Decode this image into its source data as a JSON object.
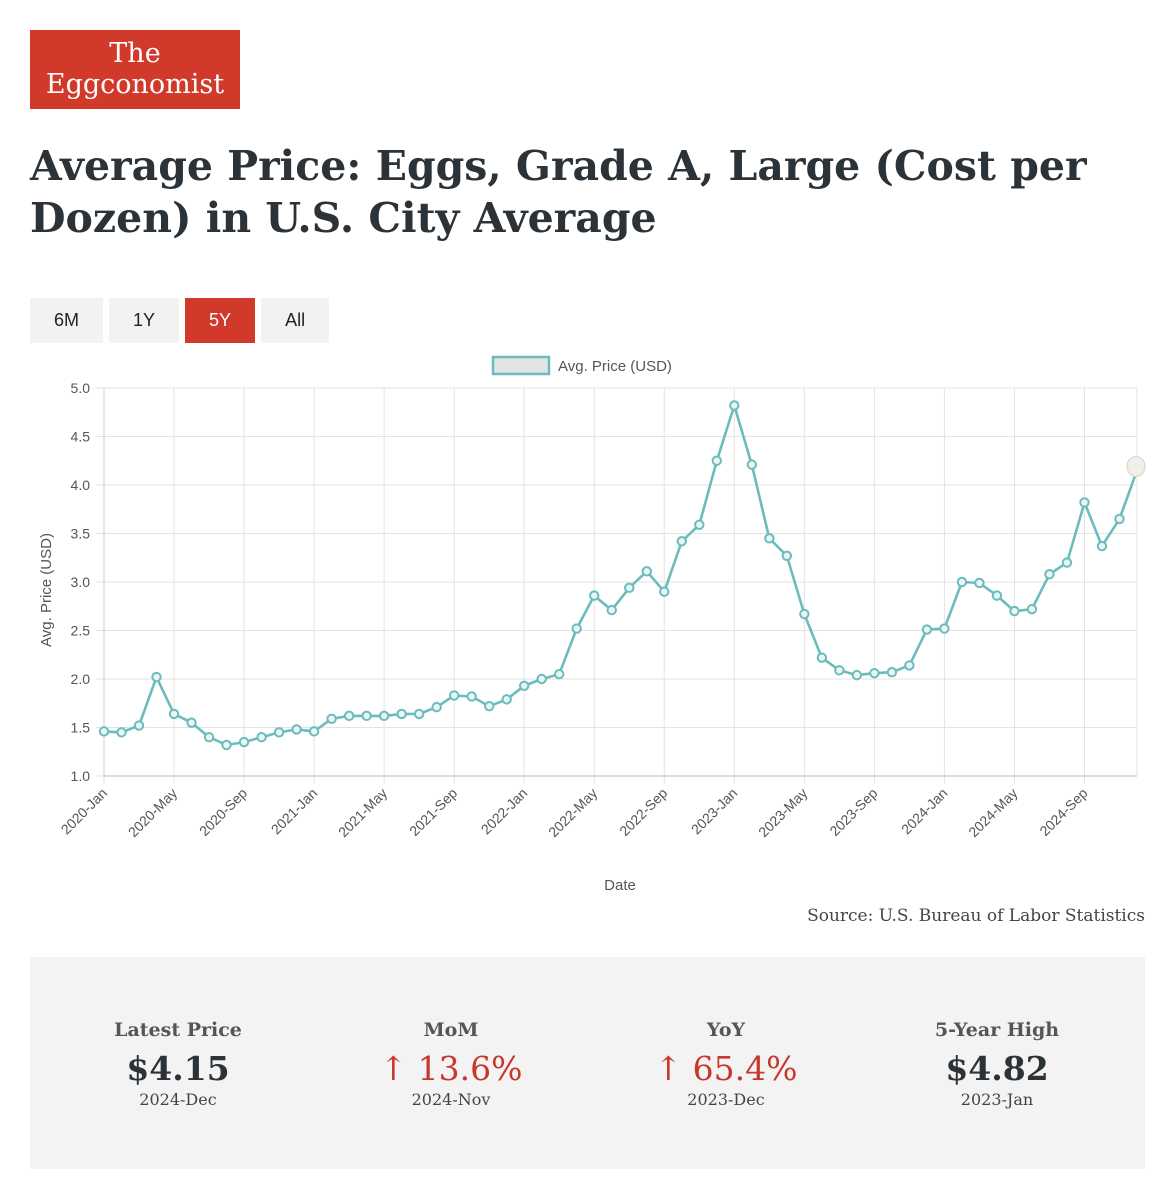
{
  "logo": {
    "line1": "The",
    "line2": "Eggconomist"
  },
  "title": "Average Price: Eggs, Grade A, Large (Cost per Dozen) in U.S. City Average",
  "ranges": [
    {
      "label": "6M",
      "active": false
    },
    {
      "label": "1Y",
      "active": false
    },
    {
      "label": "5Y",
      "active": true
    },
    {
      "label": "All",
      "active": false
    }
  ],
  "colors": {
    "accent": "#d13a2a",
    "line": "#6bbcbc",
    "grid": "#e3e3e3"
  },
  "chart_data": {
    "type": "line",
    "xlabel": "Date",
    "ylabel": "Avg. Price (USD)",
    "ylim": [
      1.0,
      5.0
    ],
    "yticks": [
      1.0,
      1.5,
      2.0,
      2.5,
      3.0,
      3.5,
      4.0,
      4.5,
      5.0
    ],
    "grid": true,
    "legend_position": "top-center",
    "x_tick_labels": [
      "2020-Jan",
      "2020-May",
      "2020-Sep",
      "2021-Jan",
      "2021-May",
      "2021-Sep",
      "2022-Jan",
      "2022-May",
      "2022-Sep",
      "2023-Jan",
      "2023-May",
      "2023-Sep",
      "2024-Jan",
      "2024-May",
      "2024-Sep"
    ],
    "x": [
      "2020-Jan",
      "2020-Feb",
      "2020-Mar",
      "2020-Apr",
      "2020-May",
      "2020-Jun",
      "2020-Jul",
      "2020-Aug",
      "2020-Sep",
      "2020-Oct",
      "2020-Nov",
      "2020-Dec",
      "2021-Jan",
      "2021-Feb",
      "2021-Mar",
      "2021-Apr",
      "2021-May",
      "2021-Jun",
      "2021-Jul",
      "2021-Aug",
      "2021-Sep",
      "2021-Oct",
      "2021-Nov",
      "2021-Dec",
      "2022-Jan",
      "2022-Feb",
      "2022-Mar",
      "2022-Apr",
      "2022-May",
      "2022-Jun",
      "2022-Jul",
      "2022-Aug",
      "2022-Sep",
      "2022-Oct",
      "2022-Nov",
      "2022-Dec",
      "2023-Jan",
      "2023-Feb",
      "2023-Mar",
      "2023-Apr",
      "2023-May",
      "2023-Jun",
      "2023-Jul",
      "2023-Aug",
      "2023-Sep",
      "2023-Oct",
      "2023-Nov",
      "2023-Dec",
      "2024-Jan",
      "2024-Feb",
      "2024-Mar",
      "2024-Apr",
      "2024-May",
      "2024-Jun",
      "2024-Jul",
      "2024-Aug",
      "2024-Sep",
      "2024-Oct",
      "2024-Nov",
      "2024-Dec"
    ],
    "series": [
      {
        "name": "Avg. Price (USD)",
        "values": [
          1.46,
          1.45,
          1.52,
          2.02,
          1.64,
          1.55,
          1.4,
          1.32,
          1.35,
          1.4,
          1.45,
          1.48,
          1.46,
          1.59,
          1.62,
          1.62,
          1.62,
          1.64,
          1.64,
          1.71,
          1.83,
          1.82,
          1.72,
          1.79,
          1.93,
          2.0,
          2.05,
          2.52,
          2.86,
          2.71,
          2.94,
          3.11,
          2.9,
          3.42,
          3.59,
          4.25,
          4.82,
          4.21,
          3.45,
          3.27,
          2.67,
          2.22,
          2.09,
          2.04,
          2.06,
          2.07,
          2.14,
          2.51,
          2.52,
          3.0,
          2.99,
          2.86,
          2.7,
          2.72,
          3.08,
          3.2,
          3.82,
          3.37,
          3.65,
          4.15
        ]
      }
    ]
  },
  "source": "Source: U.S. Bureau of Labor Statistics",
  "stats": [
    {
      "label": "Latest Price",
      "value": "$4.15",
      "sub": "2024-Dec",
      "up": false
    },
    {
      "label": "MoM",
      "value": "↑ 13.6%",
      "sub": "2024-Nov",
      "up": true
    },
    {
      "label": "YoY",
      "value": "↑ 65.4%",
      "sub": "2023-Dec",
      "up": true
    },
    {
      "label": "5-Year High",
      "value": "$4.82",
      "sub": "2023-Jan",
      "up": false
    }
  ]
}
